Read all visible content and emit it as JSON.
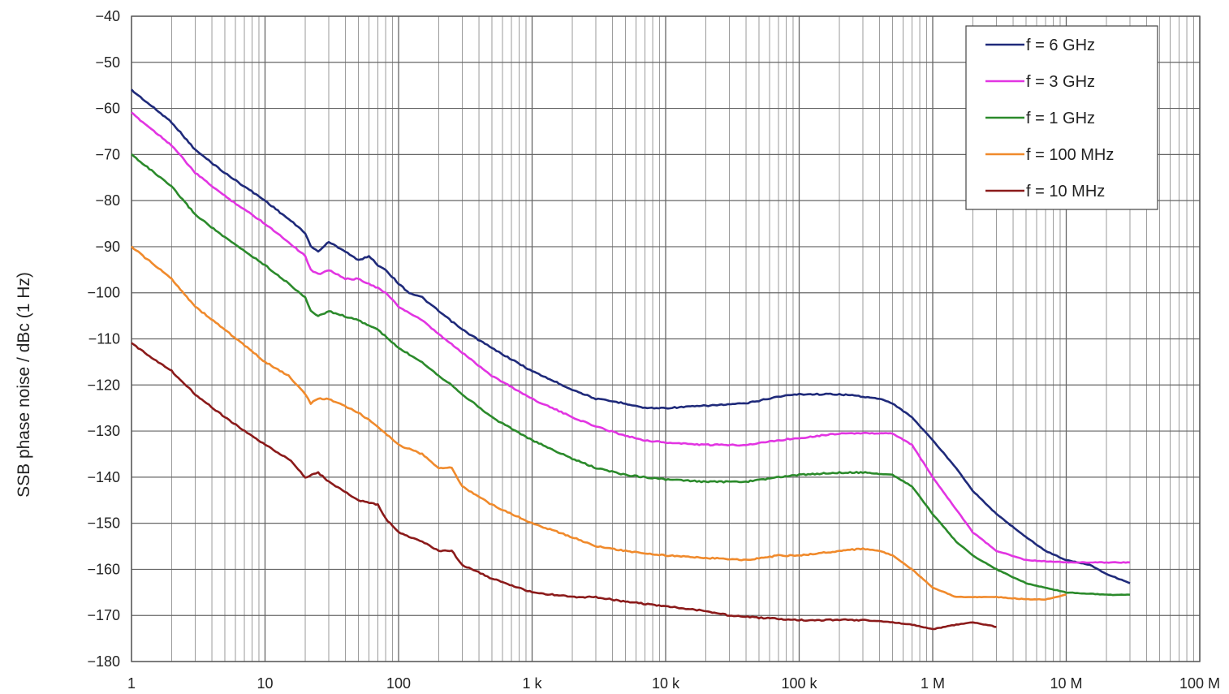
{
  "chart_data": {
    "type": "line",
    "title": "",
    "xlabel": "",
    "ylabel": "SSB phase noise / dBc (1 Hz)",
    "x_scale": "log",
    "xlim": [
      1,
      100000000
    ],
    "ylim": [
      -180,
      -40
    ],
    "grid": true,
    "legend_position": "top-right",
    "x_ticks": [
      {
        "value": 1,
        "label": "1"
      },
      {
        "value": 10,
        "label": "10"
      },
      {
        "value": 100,
        "label": "100"
      },
      {
        "value": 1000,
        "label": "1 k"
      },
      {
        "value": 10000,
        "label": "10 k"
      },
      {
        "value": 100000,
        "label": "100 k"
      },
      {
        "value": 1000000,
        "label": "1 M"
      },
      {
        "value": 10000000,
        "label": "10 M"
      },
      {
        "value": 100000000,
        "label": "100 M"
      }
    ],
    "y_ticks": [
      {
        "value": -40,
        "label": "−40"
      },
      {
        "value": -50,
        "label": "−50"
      },
      {
        "value": -60,
        "label": "−60"
      },
      {
        "value": -70,
        "label": "−70"
      },
      {
        "value": -80,
        "label": "−80"
      },
      {
        "value": -90,
        "label": "−90"
      },
      {
        "value": -100,
        "label": "−100"
      },
      {
        "value": -110,
        "label": "−110"
      },
      {
        "value": -120,
        "label": "−120"
      },
      {
        "value": -130,
        "label": "−130"
      },
      {
        "value": -140,
        "label": "−140"
      },
      {
        "value": -150,
        "label": "−150"
      },
      {
        "value": -160,
        "label": "−160"
      },
      {
        "value": -170,
        "label": "−170"
      },
      {
        "value": -180,
        "label": "−180"
      }
    ],
    "series": [
      {
        "name": "f = 6 GHz",
        "color": "#1f2a7a",
        "points": [
          [
            1,
            -56
          ],
          [
            2,
            -63
          ],
          [
            3,
            -69
          ],
          [
            5,
            -74
          ],
          [
            10,
            -80
          ],
          [
            15,
            -84
          ],
          [
            20,
            -87
          ],
          [
            22,
            -90
          ],
          [
            25,
            -91
          ],
          [
            30,
            -89
          ],
          [
            40,
            -91
          ],
          [
            50,
            -93
          ],
          [
            60,
            -92
          ],
          [
            70,
            -94
          ],
          [
            80,
            -95
          ],
          [
            100,
            -98
          ],
          [
            120,
            -100
          ],
          [
            150,
            -101
          ],
          [
            200,
            -104
          ],
          [
            300,
            -108
          ],
          [
            500,
            -112
          ],
          [
            1000,
            -117
          ],
          [
            2000,
            -121
          ],
          [
            3000,
            -123
          ],
          [
            5000,
            -124
          ],
          [
            7000,
            -125
          ],
          [
            10000,
            -125
          ],
          [
            20000,
            -124.5
          ],
          [
            40000,
            -124
          ],
          [
            70000,
            -122.5
          ],
          [
            100000,
            -122
          ],
          [
            200000,
            -122
          ],
          [
            300000,
            -122.5
          ],
          [
            400000,
            -123
          ],
          [
            500000,
            -124
          ],
          [
            700000,
            -127
          ],
          [
            1000000,
            -132
          ],
          [
            1500000,
            -138
          ],
          [
            2000000,
            -143
          ],
          [
            3000000,
            -148
          ],
          [
            5000000,
            -153
          ],
          [
            7000000,
            -156
          ],
          [
            10000000,
            -158
          ],
          [
            15000000,
            -159
          ],
          [
            20000000,
            -161
          ],
          [
            30000000,
            -163
          ]
        ]
      },
      {
        "name": "f = 3 GHz",
        "color": "#e235e2",
        "points": [
          [
            1,
            -61
          ],
          [
            2,
            -68
          ],
          [
            3,
            -74
          ],
          [
            5,
            -79
          ],
          [
            10,
            -85
          ],
          [
            15,
            -89
          ],
          [
            20,
            -92
          ],
          [
            22,
            -95
          ],
          [
            25,
            -96
          ],
          [
            30,
            -95
          ],
          [
            40,
            -97
          ],
          [
            50,
            -97
          ],
          [
            60,
            -98
          ],
          [
            70,
            -99
          ],
          [
            80,
            -100
          ],
          [
            100,
            -103
          ],
          [
            150,
            -106
          ],
          [
            200,
            -109
          ],
          [
            300,
            -113
          ],
          [
            500,
            -118
          ],
          [
            1000,
            -123
          ],
          [
            2000,
            -127
          ],
          [
            3000,
            -129
          ],
          [
            5000,
            -131
          ],
          [
            7000,
            -132
          ],
          [
            10000,
            -132.5
          ],
          [
            20000,
            -133
          ],
          [
            40000,
            -133
          ],
          [
            70000,
            -132
          ],
          [
            100000,
            -131.5
          ],
          [
            200000,
            -130.5
          ],
          [
            300000,
            -130.5
          ],
          [
            500000,
            -130.5
          ],
          [
            700000,
            -133
          ],
          [
            1000000,
            -140
          ],
          [
            1500000,
            -147
          ],
          [
            2000000,
            -152
          ],
          [
            3000000,
            -156
          ],
          [
            5000000,
            -158
          ],
          [
            10000000,
            -158.5
          ],
          [
            20000000,
            -158.5
          ],
          [
            30000000,
            -158.5
          ]
        ]
      },
      {
        "name": "f = 1 GHz",
        "color": "#2b8a2b",
        "points": [
          [
            1,
            -70
          ],
          [
            2,
            -77
          ],
          [
            3,
            -83
          ],
          [
            5,
            -88
          ],
          [
            10,
            -94
          ],
          [
            15,
            -98
          ],
          [
            20,
            -101
          ],
          [
            22,
            -104
          ],
          [
            25,
            -105
          ],
          [
            30,
            -104
          ],
          [
            50,
            -106
          ],
          [
            70,
            -108
          ],
          [
            100,
            -112
          ],
          [
            150,
            -115
          ],
          [
            200,
            -118
          ],
          [
            250,
            -120
          ],
          [
            300,
            -122
          ],
          [
            500,
            -127
          ],
          [
            1000,
            -132
          ],
          [
            2000,
            -136
          ],
          [
            3000,
            -138
          ],
          [
            5000,
            -139.5
          ],
          [
            10000,
            -140.5
          ],
          [
            20000,
            -141
          ],
          [
            40000,
            -141
          ],
          [
            70000,
            -140
          ],
          [
            100000,
            -139.5
          ],
          [
            200000,
            -139
          ],
          [
            300000,
            -139
          ],
          [
            500000,
            -139.5
          ],
          [
            700000,
            -142
          ],
          [
            1000000,
            -148
          ],
          [
            1500000,
            -154
          ],
          [
            2000000,
            -157
          ],
          [
            3000000,
            -160
          ],
          [
            5000000,
            -163
          ],
          [
            7000000,
            -164
          ],
          [
            10000000,
            -165
          ],
          [
            20000000,
            -165.5
          ],
          [
            30000000,
            -165.5
          ]
        ]
      },
      {
        "name": "f = 100 MHz",
        "color": "#f08a2c",
        "points": [
          [
            1,
            -90
          ],
          [
            2,
            -97
          ],
          [
            3,
            -103
          ],
          [
            5,
            -108
          ],
          [
            10,
            -115
          ],
          [
            15,
            -118
          ],
          [
            20,
            -122
          ],
          [
            22,
            -124
          ],
          [
            25,
            -123
          ],
          [
            30,
            -123
          ],
          [
            50,
            -126
          ],
          [
            70,
            -129
          ],
          [
            100,
            -133
          ],
          [
            150,
            -135
          ],
          [
            200,
            -138
          ],
          [
            250,
            -138
          ],
          [
            300,
            -142
          ],
          [
            500,
            -146
          ],
          [
            1000,
            -150
          ],
          [
            2000,
            -153
          ],
          [
            3000,
            -155
          ],
          [
            5000,
            -156
          ],
          [
            10000,
            -157
          ],
          [
            20000,
            -157.5
          ],
          [
            40000,
            -158
          ],
          [
            70000,
            -157
          ],
          [
            100000,
            -157
          ],
          [
            200000,
            -156
          ],
          [
            300000,
            -155.5
          ],
          [
            400000,
            -156
          ],
          [
            500000,
            -157
          ],
          [
            700000,
            -160
          ],
          [
            1000000,
            -164
          ],
          [
            1500000,
            -166
          ],
          [
            2000000,
            -166
          ],
          [
            3000000,
            -166
          ],
          [
            5000000,
            -166.5
          ],
          [
            7000000,
            -166.5
          ],
          [
            10000000,
            -165.5
          ]
        ]
      },
      {
        "name": "f = 10 MHz",
        "color": "#8b1a1a",
        "points": [
          [
            1,
            -111
          ],
          [
            2,
            -117
          ],
          [
            3,
            -122
          ],
          [
            5,
            -127
          ],
          [
            10,
            -133
          ],
          [
            15,
            -136
          ],
          [
            20,
            -140
          ],
          [
            25,
            -139
          ],
          [
            30,
            -141
          ],
          [
            50,
            -145
          ],
          [
            70,
            -146
          ],
          [
            80,
            -149
          ],
          [
            100,
            -152
          ],
          [
            150,
            -154
          ],
          [
            200,
            -156
          ],
          [
            250,
            -156
          ],
          [
            300,
            -159
          ],
          [
            500,
            -162
          ],
          [
            1000,
            -165
          ],
          [
            2000,
            -166
          ],
          [
            3000,
            -166
          ],
          [
            5000,
            -167
          ],
          [
            10000,
            -168
          ],
          [
            20000,
            -169
          ],
          [
            30000,
            -170
          ],
          [
            50000,
            -170.5
          ],
          [
            100000,
            -171
          ],
          [
            200000,
            -171
          ],
          [
            300000,
            -171
          ],
          [
            500000,
            -171.5
          ],
          [
            700000,
            -172
          ],
          [
            1000000,
            -173
          ],
          [
            1500000,
            -172
          ],
          [
            2000000,
            -171.5
          ],
          [
            2500000,
            -172
          ],
          [
            3000000,
            -172.5
          ]
        ]
      }
    ]
  }
}
